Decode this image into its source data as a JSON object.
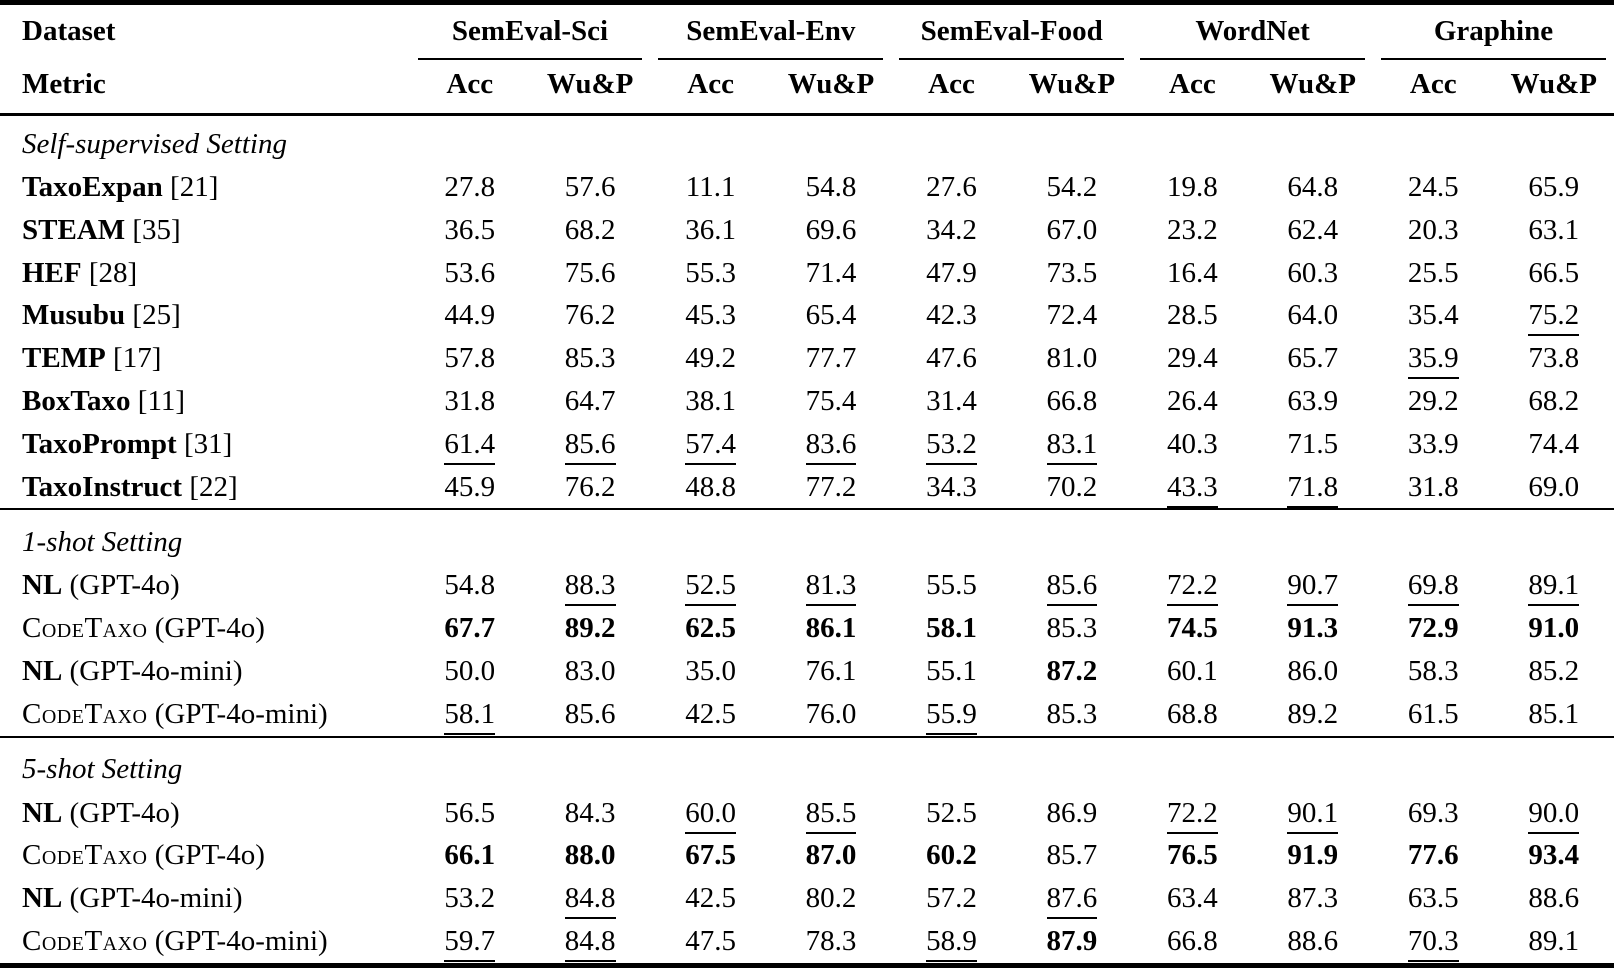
{
  "page": {
    "background": "#ffffff",
    "text_color": "#000000",
    "rule_color": "#000000"
  },
  "table": {
    "corner": {
      "dataset_label": "Dataset",
      "metric_label": "Metric"
    },
    "metrics": [
      "Acc",
      "Wu&P"
    ],
    "groups": [
      {
        "label": "SemEval-Sci"
      },
      {
        "label": "SemEval-Env"
      },
      {
        "label": "SemEval-Food"
      },
      {
        "label": "WordNet"
      },
      {
        "label": "Graphine"
      }
    ],
    "sections": [
      {
        "title": "Self-supervised Setting",
        "rows": [
          {
            "name": "TaxoExpan",
            "name_style": "bold",
            "suffix": "[21]",
            "cells": [
              "27.8",
              "57.6",
              "11.1",
              "54.8",
              "27.6",
              "54.2",
              "19.8",
              "64.8",
              "24.5",
              "65.9"
            ]
          },
          {
            "name": "STEAM",
            "name_style": "bold",
            "suffix": "[35]",
            "cells": [
              "36.5",
              "68.2",
              "36.1",
              "69.6",
              "34.2",
              "67.0",
              "23.2",
              "62.4",
              "20.3",
              "63.1"
            ]
          },
          {
            "name": "HEF",
            "name_style": "bold",
            "suffix": "[28]",
            "cells": [
              "53.6",
              "75.6",
              "55.3",
              "71.4",
              "47.9",
              "73.5",
              "16.4",
              "60.3",
              "25.5",
              "66.5"
            ]
          },
          {
            "name": "Musubu",
            "name_style": "bold",
            "suffix": "[25]",
            "cells": [
              "44.9",
              "76.2",
              "45.3",
              "65.4",
              "42.3",
              "72.4",
              "28.5",
              "64.0",
              "35.4",
              {
                "v": "75.2",
                "u": true
              }
            ]
          },
          {
            "name": "TEMP",
            "name_style": "bold",
            "suffix": "[17]",
            "cells": [
              "57.8",
              "85.3",
              "49.2",
              "77.7",
              "47.6",
              "81.0",
              "29.4",
              "65.7",
              {
                "v": "35.9",
                "u": true
              },
              "73.8"
            ]
          },
          {
            "name": "BoxTaxo",
            "name_style": "bold",
            "suffix": "[11]",
            "cells": [
              "31.8",
              "64.7",
              "38.1",
              "75.4",
              "31.4",
              "66.8",
              "26.4",
              "63.9",
              "29.2",
              "68.2"
            ]
          },
          {
            "name": "TaxoPrompt",
            "name_style": "bold",
            "suffix": "[31]",
            "cells": [
              {
                "v": "61.4",
                "u": true
              },
              {
                "v": "85.6",
                "u": true
              },
              {
                "v": "57.4",
                "u": true
              },
              {
                "v": "83.6",
                "u": true
              },
              {
                "v": "53.2",
                "u": true
              },
              {
                "v": "83.1",
                "u": true
              },
              "40.3",
              "71.5",
              "33.9",
              "74.4"
            ]
          },
          {
            "name": "TaxoInstruct",
            "name_style": "bold",
            "suffix": "[22]",
            "cells": [
              "45.9",
              "76.2",
              "48.8",
              "77.2",
              "34.3",
              "70.2",
              {
                "v": "43.3",
                "u": true
              },
              {
                "v": "71.8",
                "u": true
              },
              "31.8",
              "69.0"
            ]
          }
        ]
      },
      {
        "title": "1-shot Setting",
        "rows": [
          {
            "name": "NL",
            "name_style": "bold",
            "suffix": "(GPT-4o)",
            "cells": [
              "54.8",
              {
                "v": "88.3",
                "u": true
              },
              {
                "v": "52.5",
                "u": true
              },
              {
                "v": "81.3",
                "u": true
              },
              "55.5",
              {
                "v": "85.6",
                "u": true
              },
              {
                "v": "72.2",
                "u": true
              },
              {
                "v": "90.7",
                "u": true
              },
              {
                "v": "69.8",
                "u": true
              },
              {
                "v": "89.1",
                "u": true
              }
            ]
          },
          {
            "name": "CodeTaxo",
            "name_style": "smallcaps",
            "suffix": "(GPT-4o)",
            "cells": [
              {
                "v": "67.7",
                "b": true
              },
              {
                "v": "89.2",
                "b": true
              },
              {
                "v": "62.5",
                "b": true
              },
              {
                "v": "86.1",
                "b": true
              },
              {
                "v": "58.1",
                "b": true
              },
              "85.3",
              {
                "v": "74.5",
                "b": true
              },
              {
                "v": "91.3",
                "b": true
              },
              {
                "v": "72.9",
                "b": true
              },
              {
                "v": "91.0",
                "b": true
              }
            ]
          },
          {
            "name": "NL",
            "name_style": "bold",
            "suffix": "(GPT-4o-mini)",
            "cells": [
              "50.0",
              "83.0",
              "35.0",
              "76.1",
              "55.1",
              {
                "v": "87.2",
                "b": true
              },
              "60.1",
              "86.0",
              "58.3",
              "85.2"
            ]
          },
          {
            "name": "CodeTaxo",
            "name_style": "smallcaps",
            "suffix": "(GPT-4o-mini)",
            "cells": [
              {
                "v": "58.1",
                "u": true
              },
              "85.6",
              "42.5",
              "76.0",
              {
                "v": "55.9",
                "u": true
              },
              "85.3",
              "68.8",
              "89.2",
              "61.5",
              "85.1"
            ]
          }
        ]
      },
      {
        "title": "5-shot Setting",
        "rows": [
          {
            "name": "NL",
            "name_style": "bold",
            "suffix": "(GPT-4o)",
            "cells": [
              "56.5",
              "84.3",
              {
                "v": "60.0",
                "u": true
              },
              {
                "v": "85.5",
                "u": true
              },
              "52.5",
              "86.9",
              {
                "v": "72.2",
                "u": true
              },
              {
                "v": "90.1",
                "u": true
              },
              "69.3",
              {
                "v": "90.0",
                "u": true
              }
            ]
          },
          {
            "name": "CodeTaxo",
            "name_style": "smallcaps",
            "suffix": "(GPT-4o)",
            "cells": [
              {
                "v": "66.1",
                "b": true
              },
              {
                "v": "88.0",
                "b": true
              },
              {
                "v": "67.5",
                "b": true
              },
              {
                "v": "87.0",
                "b": true
              },
              {
                "v": "60.2",
                "b": true
              },
              "85.7",
              {
                "v": "76.5",
                "b": true
              },
              {
                "v": "91.9",
                "b": true
              },
              {
                "v": "77.6",
                "b": true
              },
              {
                "v": "93.4",
                "b": true
              }
            ]
          },
          {
            "name": "NL",
            "name_style": "bold",
            "suffix": "(GPT-4o-mini)",
            "cells": [
              "53.2",
              {
                "v": "84.8",
                "u": true
              },
              "42.5",
              "80.2",
              "57.2",
              {
                "v": "87.6",
                "u": true
              },
              "63.4",
              "87.3",
              "63.5",
              "88.6"
            ]
          },
          {
            "name": "CodeTaxo",
            "name_style": "smallcaps",
            "suffix": "(GPT-4o-mini)",
            "cells": [
              {
                "v": "59.7",
                "u": true
              },
              {
                "v": "84.8",
                "u": true
              },
              "47.5",
              "78.3",
              {
                "v": "58.9",
                "u": true
              },
              {
                "v": "87.9",
                "b": true
              },
              "66.8",
              "88.6",
              {
                "v": "70.3",
                "u": true
              },
              "89.1"
            ]
          }
        ]
      }
    ]
  }
}
